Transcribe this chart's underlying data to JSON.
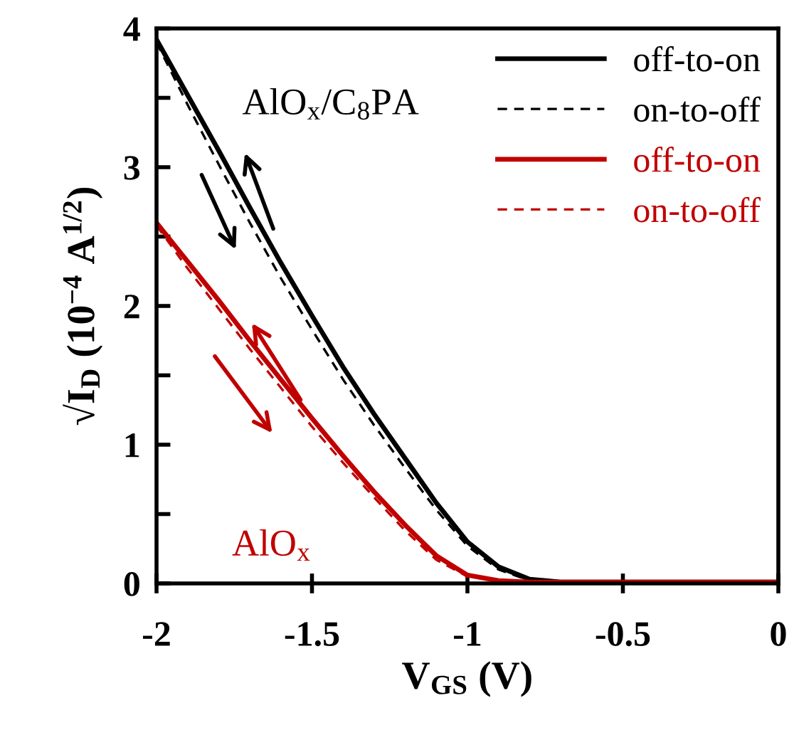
{
  "chart_data": {
    "type": "line",
    "xlabel": "V$_{GS}$ (V)",
    "ylabel": "√I$_{D}$ (10$^{−4}$ A$^{1/2}$)",
    "x": [
      -2,
      -1.9,
      -1.8,
      -1.7,
      -1.6,
      -1.5,
      -1.4,
      -1.3,
      -1.2,
      -1.1,
      -1.0,
      -0.9,
      -0.8,
      -0.7,
      -0.5,
      0
    ],
    "series": [
      {
        "name": "off-to-on",
        "color": "#000000",
        "line_style": "solid",
        "values": [
          3.92,
          3.52,
          3.12,
          2.71,
          2.31,
          1.93,
          1.56,
          1.22,
          0.9,
          0.58,
          0.3,
          0.12,
          0.03,
          0.01,
          0.01,
          0.01
        ]
      },
      {
        "name": "on-to-off",
        "color": "#000000",
        "line_style": "dashed",
        "values": [
          3.9,
          3.45,
          3.02,
          2.6,
          2.2,
          1.83,
          1.47,
          1.14,
          0.83,
          0.53,
          0.27,
          0.1,
          0.02,
          0.01,
          0.01,
          0.01
        ]
      },
      {
        "name": "off-to-on",
        "color": "#c00000",
        "line_style": "solid",
        "values": [
          2.6,
          2.32,
          2.04,
          1.75,
          1.47,
          1.19,
          0.92,
          0.66,
          0.42,
          0.2,
          0.06,
          0.02,
          0.01,
          0.01,
          0.01,
          0.01
        ]
      },
      {
        "name": "on-to-off",
        "color": "#c00000",
        "line_style": "dashed",
        "values": [
          2.58,
          2.27,
          1.98,
          1.69,
          1.41,
          1.13,
          0.87,
          0.62,
          0.38,
          0.17,
          0.05,
          0.02,
          0.01,
          0.01,
          0.01,
          0.01
        ]
      }
    ],
    "annotations": [
      "AlO$_{x}$/C$_{8}$PA",
      "AlO$_{x}$"
    ],
    "xlim": [
      -2,
      0
    ],
    "xticks": [
      -2,
      -1.5,
      -1,
      -0.5,
      0
    ],
    "ylim": [
      0,
      4
    ],
    "yticks": [
      0,
      {
        "value": 0.5,
        "label": null
      },
      1,
      {
        "value": 1.5,
        "label": null
      },
      2,
      {
        "value": 2.5,
        "label": null
      },
      3,
      {
        "value": 3.5,
        "label": null
      },
      4
    ],
    "legend": "top right",
    "grid": false
  }
}
